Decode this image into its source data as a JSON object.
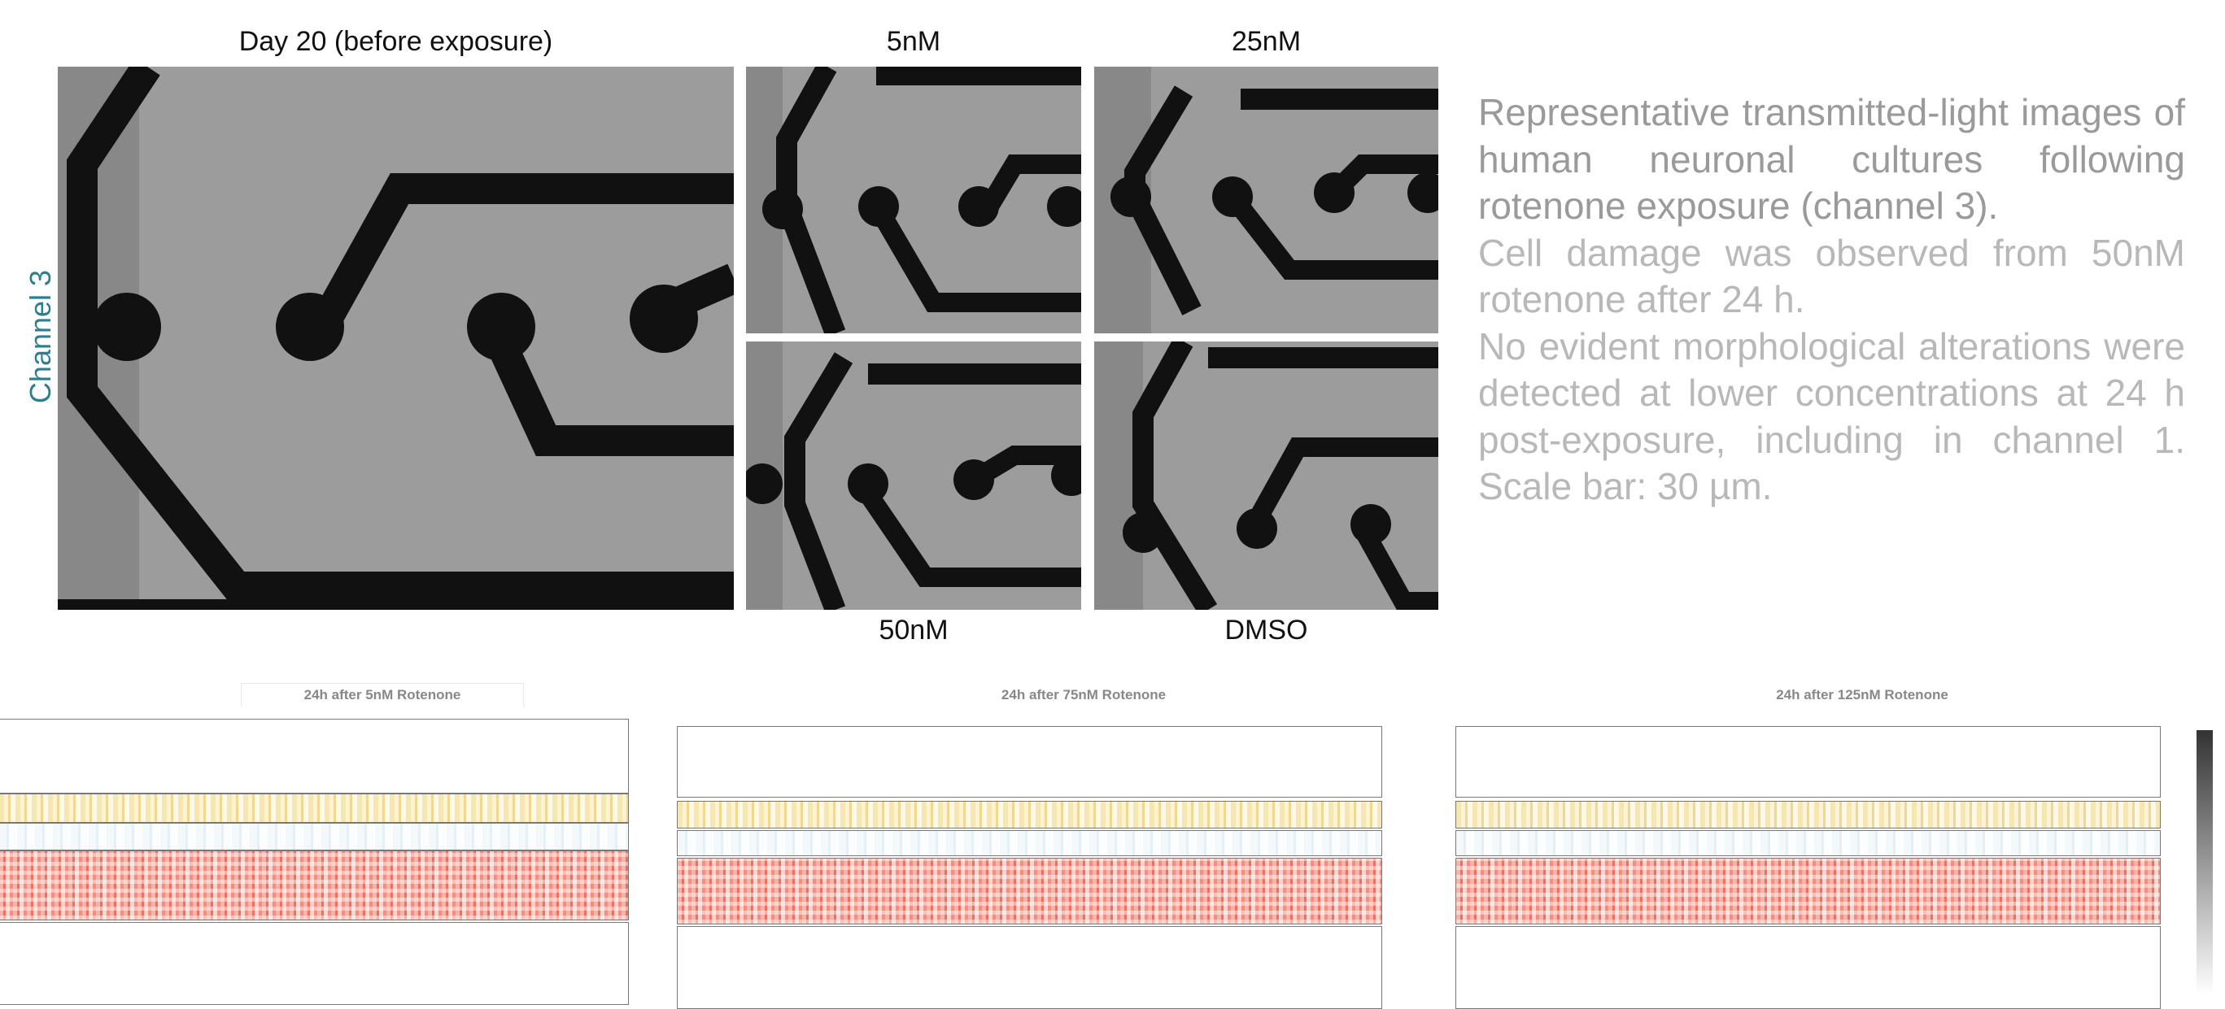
{
  "figure": {
    "panels": {
      "day20": "Day 20 (before exposure)",
      "c5": "5nM",
      "c25": "25nM",
      "c50": "50nM",
      "dmso": "DMSO"
    },
    "channel_label": "Channel 3",
    "caption": [
      "Representative transmitted-light images of human neuronal cultures following rotenone exposure (channel 3).",
      "Cell damage was observed from 50nM rotenone after 24 h.",
      "No evident morphological alterations were detected at lower concentrations at 24 h post-exposure, including in channel 1. Scale bar: 30 µm."
    ]
  },
  "heatmaps": {
    "titles": [
      "24h after 5nM Rotenone",
      "24h after 75nM Rotenone",
      "24h after 125nM Rotenone"
    ]
  }
}
